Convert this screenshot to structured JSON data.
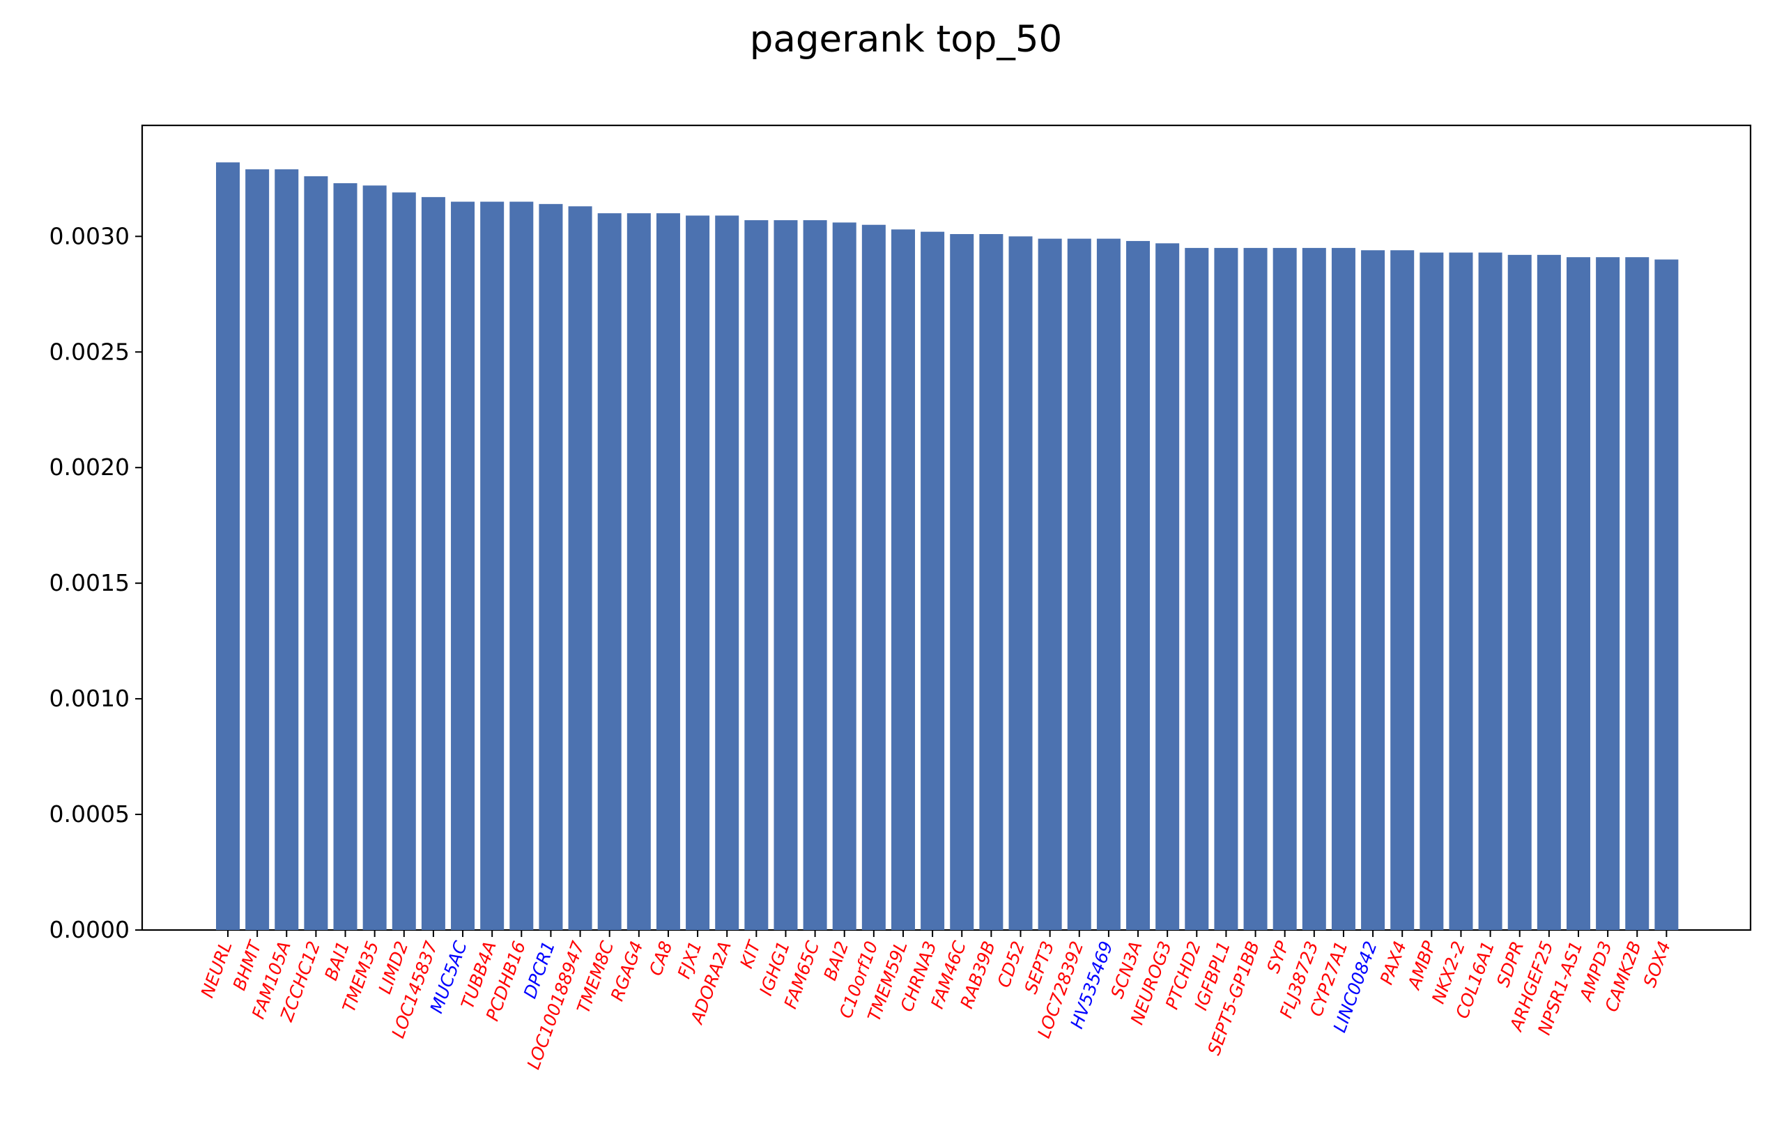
{
  "chart_data": {
    "type": "bar",
    "title": "pagerank top_50",
    "xlabel": "",
    "ylabel": "",
    "ylim": [
      0,
      0.00348
    ],
    "yticks": [
      "0.0000",
      "0.0005",
      "0.0010",
      "0.0015",
      "0.0020",
      "0.0025",
      "0.0030"
    ],
    "grid": false,
    "legend": "none",
    "bar_color": "#4c72b0",
    "label_colors": {
      "red": "#ff0000",
      "blue": "#0000ff"
    },
    "categories": [
      "NEURL",
      "BHMT",
      "FAM105A",
      "ZCCHC12",
      "BAI1",
      "TMEM35",
      "LIMD2",
      "LOC145837",
      "MUC5AC",
      "TUBB4A",
      "PCDHB16",
      "DPCR1",
      "LOC100188947",
      "TMEM8C",
      "RGAG4",
      "CA8",
      "FJX1",
      "ADORA2A",
      "KIT",
      "IGHG1",
      "FAM65C",
      "BAI2",
      "C10orf10",
      "TMEM59L",
      "CHRNA3",
      "FAM46C",
      "RAB39B",
      "CD52",
      "SEPT3",
      "LOC728392",
      "HV535469",
      "SCN3A",
      "NEUROG3",
      "PTCHD2",
      "IGFBPL1",
      "SEPT5-GP1BB",
      "SYP",
      "FLJ38723",
      "CYP27A1",
      "LINC00842",
      "PAX4",
      "AMBP",
      "NKX2-2",
      "COL16A1",
      "SDPR",
      "ARHGEF25",
      "NPSR1-AS1",
      "AMPD3",
      "CAMK2B",
      "SOX4"
    ],
    "label_color_keys": [
      "red",
      "red",
      "red",
      "red",
      "red",
      "red",
      "red",
      "red",
      "blue",
      "red",
      "red",
      "blue",
      "red",
      "red",
      "red",
      "red",
      "red",
      "red",
      "red",
      "red",
      "red",
      "red",
      "red",
      "red",
      "red",
      "red",
      "red",
      "red",
      "red",
      "red",
      "blue",
      "red",
      "red",
      "red",
      "red",
      "red",
      "red",
      "red",
      "red",
      "blue",
      "red",
      "red",
      "red",
      "red",
      "red",
      "red",
      "red",
      "red",
      "red",
      "red"
    ],
    "values": [
      0.00332,
      0.00329,
      0.00329,
      0.00326,
      0.00323,
      0.00322,
      0.00319,
      0.00317,
      0.00315,
      0.00315,
      0.00315,
      0.00314,
      0.00313,
      0.0031,
      0.0031,
      0.0031,
      0.00309,
      0.00309,
      0.00307,
      0.00307,
      0.00307,
      0.00306,
      0.00305,
      0.00303,
      0.00302,
      0.00301,
      0.00301,
      0.003,
      0.00299,
      0.00299,
      0.00299,
      0.00298,
      0.00297,
      0.00295,
      0.00295,
      0.00295,
      0.00295,
      0.00295,
      0.00295,
      0.00294,
      0.00294,
      0.00293,
      0.00293,
      0.00293,
      0.00292,
      0.00292,
      0.00291,
      0.00291,
      0.00291,
      0.0029
    ]
  }
}
